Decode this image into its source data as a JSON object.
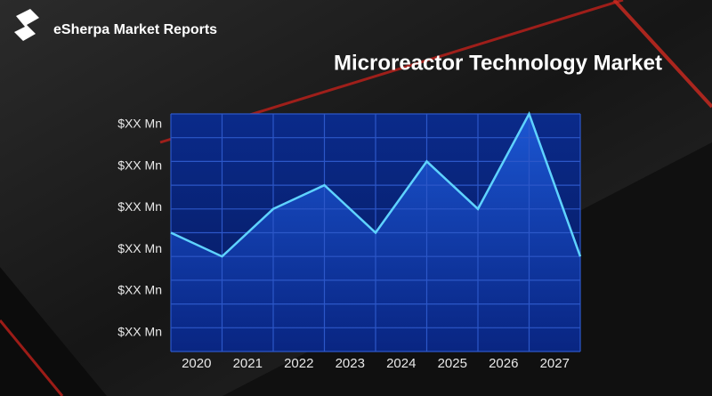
{
  "brand": "eSherpa Market Reports",
  "chart_data": {
    "type": "area",
    "title": "Microreactor Technology Market",
    "x": [
      2019.5,
      2020.5,
      2021.5,
      2022.5,
      2023.5,
      2024.5,
      2025.5,
      2026.5,
      2027.5
    ],
    "values": [
      5,
      4,
      6,
      7,
      5,
      8,
      6,
      10,
      4
    ],
    "color": "#5fd3ff",
    "xlim": [
      2019.5,
      2027.5
    ],
    "xticks": [
      2020,
      2021,
      2022,
      2023,
      2024,
      2025,
      2026,
      2027
    ],
    "ylim": [
      0,
      10
    ],
    "yticks": [
      {
        "value": 9.55,
        "label": "$XX Mn"
      },
      {
        "value": 7.8,
        "label": "$XX Mn"
      },
      {
        "value": 6.05,
        "label": "$XX Mn"
      },
      {
        "value": 4.3,
        "label": "$XX Mn"
      },
      {
        "value": 2.55,
        "label": "$XX Mn"
      },
      {
        "value": 0.8,
        "label": "$XX Mn"
      }
    ],
    "ygrid": [
      0,
      1,
      2,
      3,
      4,
      5,
      6,
      7,
      8,
      9,
      10
    ],
    "grid": true
  }
}
